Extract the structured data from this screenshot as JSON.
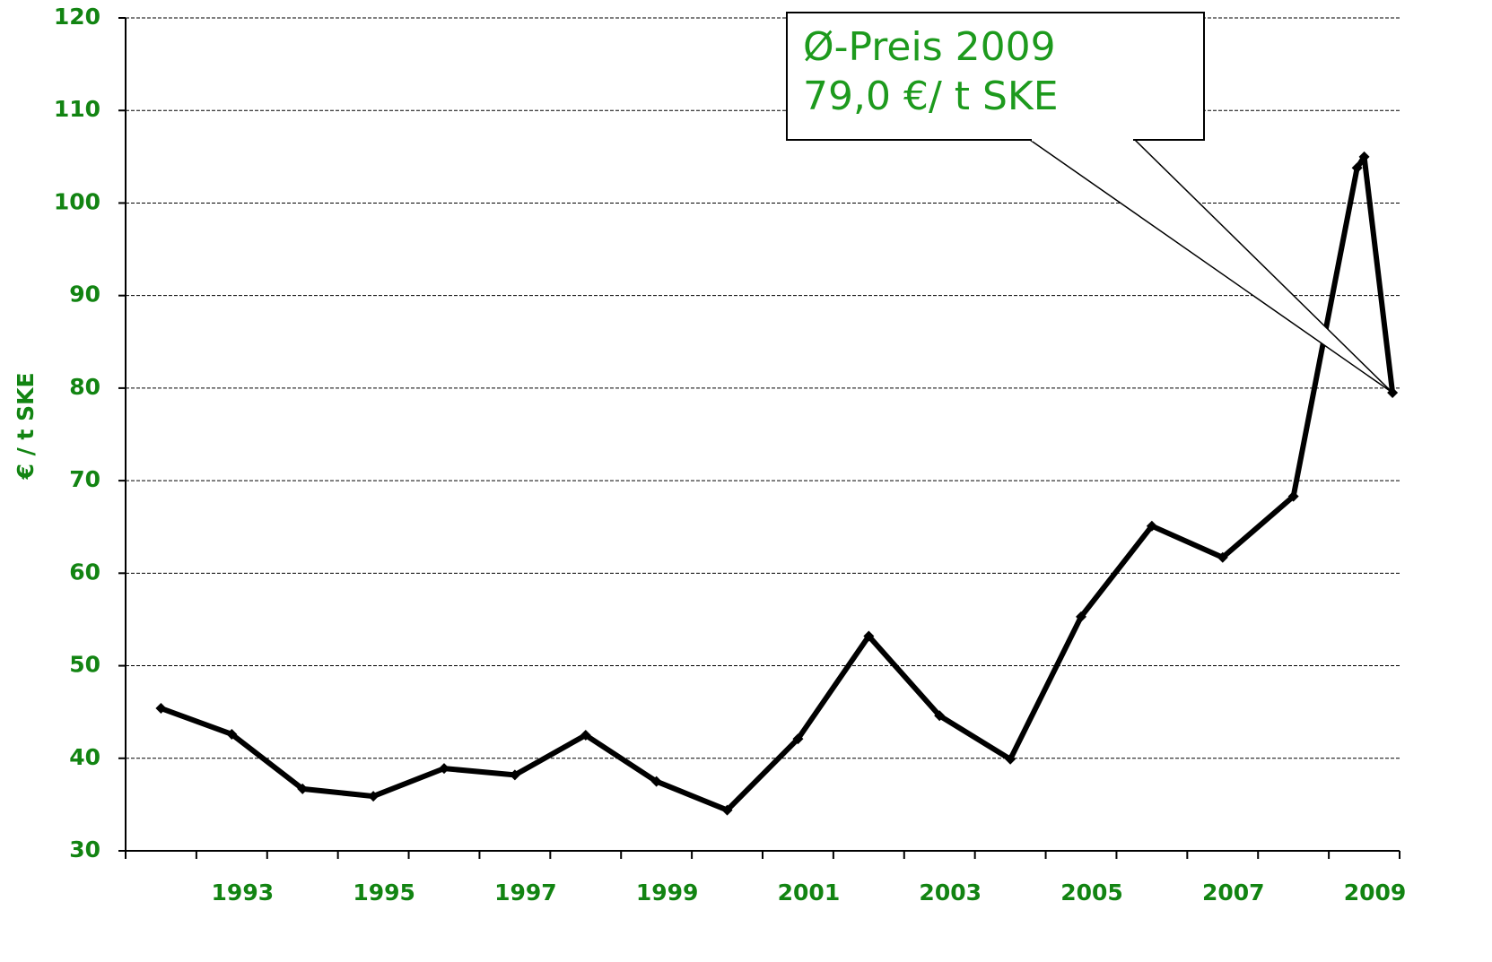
{
  "chart_data": {
    "type": "line",
    "y_label": "€ / t SKE",
    "x": [
      1992,
      1993,
      1994,
      1995,
      1996,
      1997,
      1998,
      1999,
      2000,
      2001,
      2002,
      2003,
      2004,
      2005,
      2006,
      2007,
      2008,
      2008.9,
      2009.0,
      2009.4
    ],
    "series": [
      {
        "color": "#000000",
        "values": [
          45.4,
          42.6,
          36.7,
          35.9,
          38.9,
          38.2,
          42.5,
          37.5,
          34.4,
          42.1,
          53.2,
          44.6,
          39.9,
          55.3,
          65.1,
          61.7,
          68.3,
          103.8,
          105.0,
          79.5
        ]
      }
    ],
    "xlim": [
      1991.5,
      2009.5
    ],
    "xticks": [
      1993,
      1995,
      1997,
      1999,
      2001,
      2003,
      2005,
      2007,
      2009
    ],
    "xtick_marks": [
      1991.5,
      1992.5,
      1993.5,
      1994.5,
      1995.5,
      1996.5,
      1997.5,
      1998.5,
      1999.5,
      2000.5,
      2001.5,
      2002.5,
      2003.5,
      2004.5,
      2005.5,
      2006.5,
      2007.5,
      2008.5,
      2009.5
    ],
    "ylim": [
      30,
      120
    ],
    "yticks": [
      30,
      40,
      50,
      60,
      70,
      80,
      90,
      100,
      110,
      120
    ],
    "grid": true,
    "annotation": {
      "lines": [
        "Ø-Preis 2009",
        "79,0 €/ t SKE"
      ]
    }
  }
}
